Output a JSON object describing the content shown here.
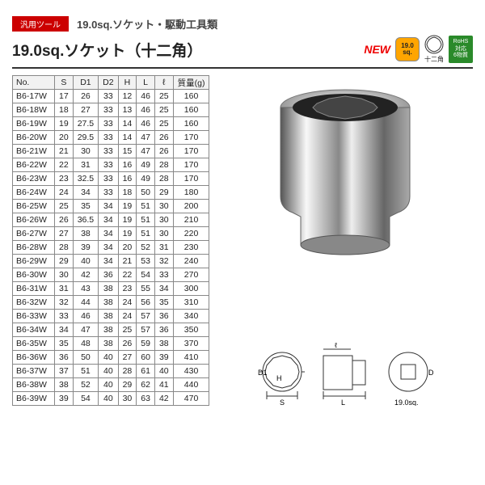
{
  "category_tag": "汎用ツール",
  "subtitle": "19.0sq.ソケット・駆動工具類",
  "title": "19.0sq.ソケット（十二角）",
  "badges": {
    "new": "NEW",
    "sq": "19.0\nsq.",
    "twelve_pt": "十二角",
    "rohs_l1": "RoHS",
    "rohs_l2": "対応",
    "rohs_l3": "6物質"
  },
  "table": {
    "columns": [
      "No.",
      "S",
      "D1",
      "D2",
      "H",
      "L",
      "ℓ",
      "質量(g)"
    ],
    "rows": [
      [
        "B6-17W",
        "17",
        "26",
        "33",
        "12",
        "46",
        "25",
        "160"
      ],
      [
        "B6-18W",
        "18",
        "27",
        "33",
        "13",
        "46",
        "25",
        "160"
      ],
      [
        "B6-19W",
        "19",
        "27.5",
        "33",
        "14",
        "46",
        "25",
        "160"
      ],
      [
        "B6-20W",
        "20",
        "29.5",
        "33",
        "14",
        "47",
        "26",
        "170"
      ],
      [
        "B6-21W",
        "21",
        "30",
        "33",
        "15",
        "47",
        "26",
        "170"
      ],
      [
        "B6-22W",
        "22",
        "31",
        "33",
        "16",
        "49",
        "28",
        "170"
      ],
      [
        "B6-23W",
        "23",
        "32.5",
        "33",
        "16",
        "49",
        "28",
        "170"
      ],
      [
        "B6-24W",
        "24",
        "34",
        "33",
        "18",
        "50",
        "29",
        "180"
      ],
      [
        "B6-25W",
        "25",
        "35",
        "34",
        "19",
        "51",
        "30",
        "200"
      ],
      [
        "B6-26W",
        "26",
        "36.5",
        "34",
        "19",
        "51",
        "30",
        "210"
      ],
      [
        "B6-27W",
        "27",
        "38",
        "34",
        "19",
        "51",
        "30",
        "220"
      ],
      [
        "B6-28W",
        "28",
        "39",
        "34",
        "20",
        "52",
        "31",
        "230"
      ],
      [
        "B6-29W",
        "29",
        "40",
        "34",
        "21",
        "53",
        "32",
        "240"
      ],
      [
        "B6-30W",
        "30",
        "42",
        "36",
        "22",
        "54",
        "33",
        "270"
      ],
      [
        "B6-31W",
        "31",
        "43",
        "38",
        "23",
        "55",
        "34",
        "300"
      ],
      [
        "B6-32W",
        "32",
        "44",
        "38",
        "24",
        "56",
        "35",
        "310"
      ],
      [
        "B6-33W",
        "33",
        "46",
        "38",
        "24",
        "57",
        "36",
        "340"
      ],
      [
        "B6-34W",
        "34",
        "47",
        "38",
        "25",
        "57",
        "36",
        "350"
      ],
      [
        "B6-35W",
        "35",
        "48",
        "38",
        "26",
        "59",
        "38",
        "370"
      ],
      [
        "B6-36W",
        "36",
        "50",
        "40",
        "27",
        "60",
        "39",
        "410"
      ],
      [
        "B6-37W",
        "37",
        "51",
        "40",
        "28",
        "61",
        "40",
        "430"
      ],
      [
        "B6-38W",
        "38",
        "52",
        "40",
        "29",
        "62",
        "41",
        "440"
      ],
      [
        "B6-39W",
        "39",
        "54",
        "40",
        "30",
        "63",
        "42",
        "470"
      ]
    ]
  },
  "dims": {
    "S": "S",
    "D1": "D1",
    "D2": "D2",
    "H": "H",
    "L": "L",
    "l": "ℓ",
    "drive": "19.0sq."
  },
  "colors": {
    "red": "#c00",
    "border": "#888",
    "rule": "#333",
    "orange": "#ffa500",
    "green": "#2a8a2a",
    "chrome_light": "#fafafa",
    "chrome_mid": "#b8b8b8",
    "chrome_dark": "#555"
  }
}
